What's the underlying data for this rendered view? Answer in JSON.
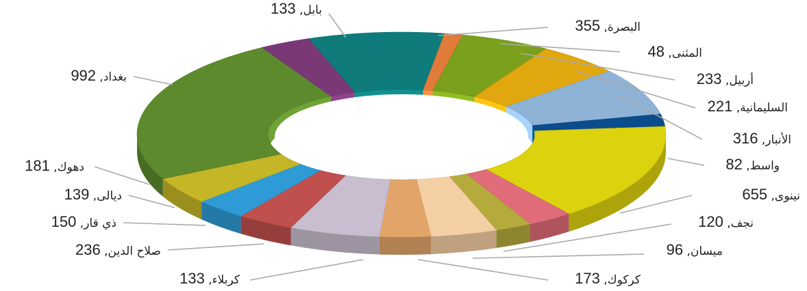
{
  "chart_data": {
    "type": "pie",
    "style": "3d-donut",
    "legend": "none",
    "series": [
      {
        "label": "البصرة",
        "value": 355,
        "color": "#0f7b7b"
      },
      {
        "label": "المثنى",
        "value": 48,
        "color": "#e07b39"
      },
      {
        "label": "أربيل",
        "value": 233,
        "color": "#7aa01c"
      },
      {
        "label": "السليمانية",
        "value": 221,
        "color": "#e0a70e"
      },
      {
        "label": "الأنبار",
        "value": 316,
        "color": "#8fb3d6"
      },
      {
        "label": "واسط",
        "value": 82,
        "color": "#0b4c8c"
      },
      {
        "label": "نينوى",
        "value": 655,
        "color": "#dcd20d"
      },
      {
        "label": "نجف",
        "value": 120,
        "color": "#e06c7a"
      },
      {
        "label": "ميسان",
        "value": 96,
        "color": "#b5aa3c"
      },
      {
        "label": "كركوك",
        "value": 173,
        "color": "#f5cfa4"
      },
      {
        "label": "كربلاء",
        "value": 133,
        "color": "#e3a46a"
      },
      {
        "label": "صلاح الدين",
        "value": 236,
        "color": "#c8becf"
      },
      {
        "label": "ذي قار",
        "value": 150,
        "color": "#c0504d"
      },
      {
        "label": "ديالى",
        "value": 139,
        "color": "#2e9bd6"
      },
      {
        "label": "دهوك",
        "value": 181,
        "color": "#c4b626"
      },
      {
        "label": "بغداد",
        "value": 992,
        "color": "#5e8a2e"
      },
      {
        "label": "بابل",
        "value": 133,
        "color": "#7b3877"
      }
    ],
    "data_labels": [
      {
        "label": "بابل, ",
        "value": "133"
      },
      {
        "label": "البصرة, ",
        "value": "355"
      },
      {
        "label": "المثنى, ",
        "value": "48"
      },
      {
        "label": "أربيل, ",
        "value": "233"
      },
      {
        "label": "السليمانية, ",
        "value": "221"
      },
      {
        "label": "الأنبار, ",
        "value": "316"
      },
      {
        "label": "واسط, ",
        "value": "82"
      },
      {
        "label": "نينوى, ",
        "value": "655"
      },
      {
        "label": "نجف, ",
        "value": "120"
      },
      {
        "label": "ميسان, ",
        "value": "96"
      },
      {
        "label": "كركوك, ",
        "value": "173"
      },
      {
        "label": "كربلاء, ",
        "value": "133"
      },
      {
        "label": "صلاح الدين, ",
        "value": "236"
      },
      {
        "label": "ذي قار, ",
        "value": "150"
      },
      {
        "label": "ديالى, ",
        "value": "139"
      },
      {
        "label": "دهوك, ",
        "value": "181"
      },
      {
        "label": "بغداد, ",
        "value": "992"
      }
    ]
  }
}
